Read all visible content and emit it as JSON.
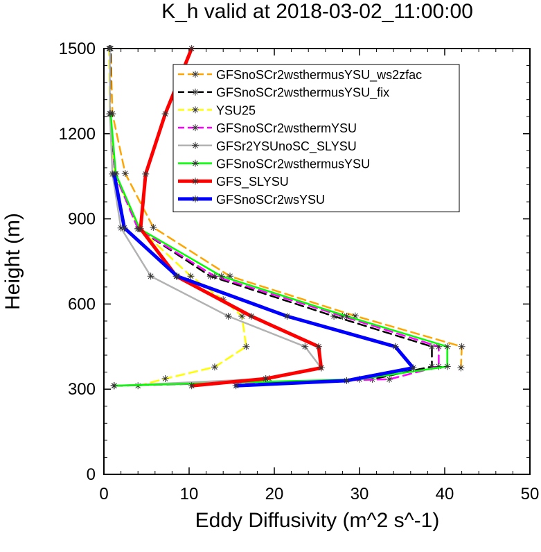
{
  "chart_data": {
    "type": "line",
    "title": "K_h valid at 2018-03-02_11:00:00",
    "xlabel": "Eddy Diffusivity (m^2 s^-1)",
    "ylabel": "Height (m)",
    "xlim": [
      0,
      50
    ],
    "ylim": [
      0,
      1500
    ],
    "x_ticks": [
      0,
      10,
      20,
      30,
      40,
      50
    ],
    "y_ticks": [
      0,
      300,
      600,
      900,
      1200,
      1500
    ],
    "legend_position": "top-right",
    "grid": false,
    "series": [
      {
        "name": "GFSnoSCr2wsthermusYSU_ws2zfac",
        "color": "#ffa500",
        "dash": "dashed",
        "width": 2.5,
        "x": [
          41.9,
          42.0,
          29.5,
          14.8,
          5.8,
          2.5,
          1.0,
          0.8
        ],
        "y": [
          375,
          450,
          558,
          698,
          870,
          1060,
          1270,
          1500
        ]
      },
      {
        "name": "GFSnoSCr2wsthermusYSU_fix",
        "color": "#000000",
        "dash": "dashed",
        "width": 2.5,
        "x": [
          1.2,
          31.5,
          38.5,
          38.5,
          27.0,
          12.5,
          4.0,
          1.3,
          0.7,
          0.8
        ],
        "y": [
          312,
          335,
          380,
          450,
          557,
          698,
          865,
          1058,
          1270,
          1500
        ]
      },
      {
        "name": "YSU25",
        "color": "#ffff00",
        "dash": "dashed",
        "width": 2.5,
        "x": [
          4.0,
          7.2,
          13.0,
          16.7,
          16.2,
          14.0,
          10.2,
          4.1,
          1.3,
          0.7,
          0.6
        ],
        "y": [
          312,
          337,
          378,
          450,
          557,
          615,
          698,
          868,
          1058,
          1270,
          1500
        ]
      },
      {
        "name": "GFSnoSCr2wsthermYSU",
        "color": "#ff00ff",
        "dash": "dashed",
        "width": 2.5,
        "x": [
          1.2,
          33.5,
          39.3,
          39.3,
          28.0,
          13.0,
          4.0,
          1.3,
          0.8
        ],
        "y": [
          312,
          335,
          380,
          450,
          557,
          698,
          865,
          1058,
          1270
        ]
      },
      {
        "name": "GFSr2YSUnoSC_SLYSU",
        "color": "#b2b2b2",
        "dash": "solid",
        "width": 2.5,
        "x": [
          1.2,
          19.4,
          25.5,
          23.6,
          14.6,
          5.5,
          2.0,
          1.0,
          0.7,
          0.7
        ],
        "y": [
          312,
          337,
          375,
          450,
          557,
          698,
          868,
          1058,
          1270,
          1500
        ]
      },
      {
        "name": "GFSnoSCr2wsthermusYSU",
        "color": "#00ff00",
        "dash": "solid",
        "width": 2.5,
        "x": [
          1.2,
          30.0,
          40.3,
          40.3,
          28.5,
          13.8,
          4.2,
          1.4,
          0.8
        ],
        "y": [
          312,
          335,
          380,
          450,
          557,
          698,
          865,
          1058,
          1270
        ]
      },
      {
        "name": "GFS_SLYSU",
        "color": "#ff0000",
        "dash": "solid",
        "width": 5,
        "x": [
          10.3,
          19.0,
          25.5,
          25.2,
          17.3,
          8.5,
          4.3,
          4.9,
          7.2,
          10.3
        ],
        "y": [
          312,
          337,
          375,
          450,
          557,
          698,
          865,
          1058,
          1270,
          1500
        ]
      },
      {
        "name": "GFSnoSCr2wsYSU",
        "color": "#0000ff",
        "dash": "solid",
        "width": 5,
        "x": [
          15.5,
          28.5,
          36.3,
          34.2,
          21.5,
          8.6,
          2.4,
          1.2
        ],
        "y": [
          312,
          330,
          375,
          450,
          557,
          698,
          868,
          1058
        ]
      }
    ]
  }
}
